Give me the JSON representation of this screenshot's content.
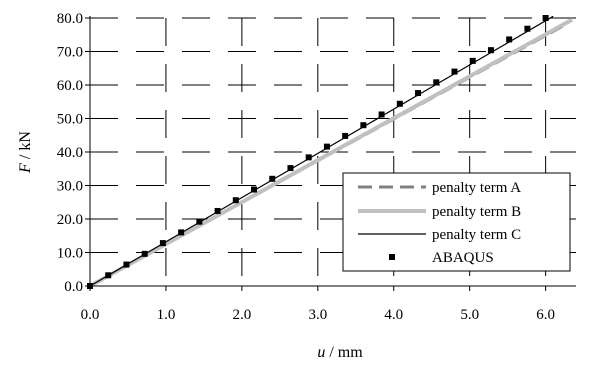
{
  "chart_data": {
    "type": "line",
    "title": "",
    "xlabel": {
      "var": "u",
      "unit": " / mm"
    },
    "ylabel": {
      "var": "F",
      "unit": " / kN"
    },
    "xlim": [
      0,
      6.4
    ],
    "ylim": [
      0,
      80
    ],
    "x_ticks": [
      0,
      1,
      2,
      3,
      4,
      5,
      6
    ],
    "x_tick_labels": [
      "0.0",
      "1.0",
      "2.0",
      "3.0",
      "4.0",
      "5.0",
      "6.0"
    ],
    "y_ticks": [
      0,
      10,
      20,
      30,
      40,
      50,
      60,
      70,
      80
    ],
    "y_tick_labels": [
      "0.0",
      "10.0",
      "20.0",
      "30.0",
      "40.0",
      "50.0",
      "60.0",
      "70.0",
      "80.0"
    ],
    "grid": "dashed",
    "legend_position": "bottom-right",
    "series": [
      {
        "name": "penalty term A",
        "style": "dashed",
        "color": "#808080",
        "x": [
          0,
          6.3
        ],
        "y": [
          0,
          78.5
        ]
      },
      {
        "name": "penalty term B",
        "style": "solid-thick",
        "color": "#c0c0c0",
        "x": [
          0,
          6.35
        ],
        "y": [
          0,
          79.5
        ]
      },
      {
        "name": "penalty term C",
        "style": "solid-thin",
        "color": "#000000",
        "x": [
          0,
          6.1
        ],
        "y": [
          0,
          80.5
        ]
      },
      {
        "name": "ABAQUS",
        "style": "markers",
        "color": "#000000",
        "x": [
          0.0,
          0.24,
          0.48,
          0.72,
          0.96,
          1.2,
          1.44,
          1.68,
          1.92,
          2.16,
          2.4,
          2.64,
          2.88,
          3.12,
          3.36,
          3.6,
          3.84,
          4.08,
          4.32,
          4.56,
          4.8,
          5.04,
          5.28,
          5.52,
          5.76,
          6.0
        ],
        "y": [
          0.0,
          3.2,
          6.4,
          9.6,
          12.8,
          16.0,
          19.2,
          22.4,
          25.6,
          28.8,
          32.0,
          35.2,
          38.4,
          41.6,
          44.8,
          48.0,
          51.2,
          54.4,
          57.6,
          60.8,
          64.0,
          67.2,
          70.4,
          73.6,
          76.8,
          80.0
        ]
      }
    ]
  }
}
